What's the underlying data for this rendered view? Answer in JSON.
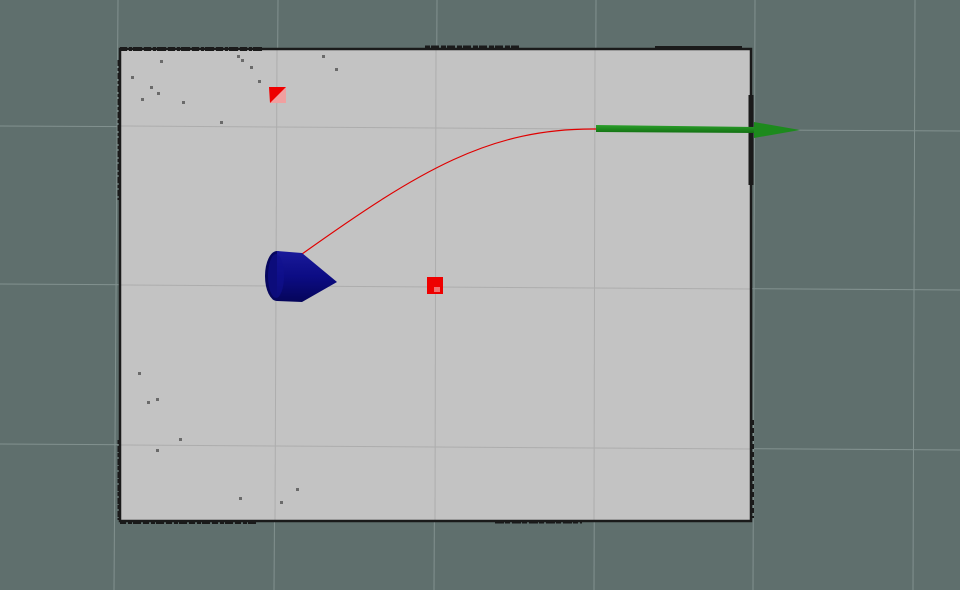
{
  "scene": {
    "background_color": "#5f6f6d",
    "grid_color": "#8b9a98",
    "map": {
      "free_color": "#c3c3c3",
      "wall_color": "#1a1a1a"
    },
    "robot": {
      "color": "#0a0a7a",
      "icon": "robot-icon"
    },
    "path": {
      "color": "#e00000"
    },
    "goal_arrow": {
      "color": "#1a8a1a",
      "icon": "goal-arrow-icon"
    },
    "markers": {
      "color": "#ee0000",
      "icon": "marker-icon"
    }
  }
}
